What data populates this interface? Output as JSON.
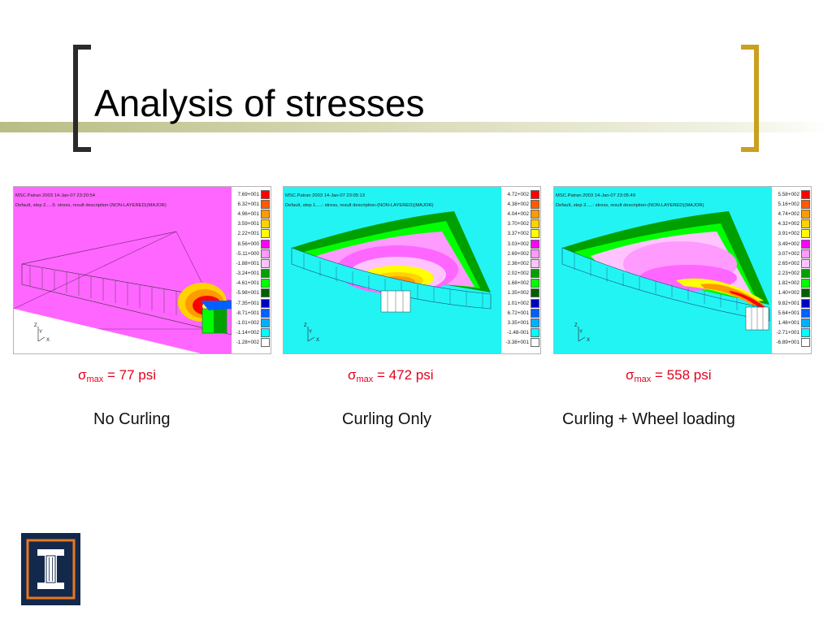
{
  "slide": {
    "title": "Analysis of stresses",
    "colors": {
      "bracket_left": "#2b2b2b",
      "bracket_right": "#c9a020",
      "band": "#c4c89a",
      "sigma": "#e3001b"
    }
  },
  "panels": [
    {
      "header1": "MSC.Patran 2003  14-Jan-07 23:20:54",
      "header2": "Default, step 2.....5: stress, result description-(NON-LAYERED)(MAJOR)",
      "legend": [
        "7.69+001",
        "6.32+001",
        "4.96+001",
        "3.59+001",
        "2.22+001",
        "8.56+000",
        "-5.11+000",
        "-1.88+001",
        "-3.24+001",
        "-4.61+001",
        "-5.98+001",
        "-7.35+001",
        "-8.71+001",
        "-1.01+002",
        "-1.14+002",
        "-1.28+002"
      ],
      "sigma_symbol": "σ",
      "sigma_sub": "max",
      "sigma_value": " = 77 psi",
      "caption": "No Curling"
    },
    {
      "header1": "MSC.Patran 2003  14-Jan-07 23:05:13",
      "header2": "Default, step 1.....: stress, result description-(NON-LAYERED)(MAJOR)",
      "legend": [
        "4.72+002",
        "4.38+002",
        "4.04+002",
        "3.70+002",
        "3.37+002",
        "3.03+002",
        "2.69+002",
        "2.36+002",
        "2.02+002",
        "1.68+002",
        "1.35+002",
        "1.01+002",
        "6.72+001",
        "3.35+001",
        "-1.48-001",
        "-3.38+001"
      ],
      "sigma_symbol": "σ",
      "sigma_sub": "max",
      "sigma_value": " = 472 psi",
      "caption": "Curling Only"
    },
    {
      "header1": "MSC.Patran 2003  14-Jan-07 23:05:49",
      "header2": "Default, step 2.....: stress, result description-(NON-LAYERED)(MAJOR)",
      "legend": [
        "5.58+002",
        "5.16+002",
        "4.74+002",
        "4.32+002",
        "3.91+002",
        "3.49+002",
        "3.07+002",
        "2.65+002",
        "2.23+002",
        "1.82+002",
        "1.40+002",
        "9.82+001",
        "5.64+001",
        "1.46+001",
        "-2.71+001",
        "-6.89+001"
      ],
      "sigma_symbol": "σ",
      "sigma_sub": "max",
      "sigma_value": " = 558 psi",
      "caption": "Curling + Wheel loading"
    }
  ],
  "legend_colors": [
    "#ff0000",
    "#ff5a00",
    "#ff9a00",
    "#ffd200",
    "#ffff00",
    "#ff00ff",
    "#ff9aff",
    "#ffc4ff",
    "#00a000",
    "#00ff00",
    "#006000",
    "#0000c0",
    "#0060ff",
    "#00b0ff",
    "#00ffff",
    "#ffffff"
  ],
  "axis_labels": {
    "x": "X",
    "y": "Y",
    "z": "Z"
  }
}
